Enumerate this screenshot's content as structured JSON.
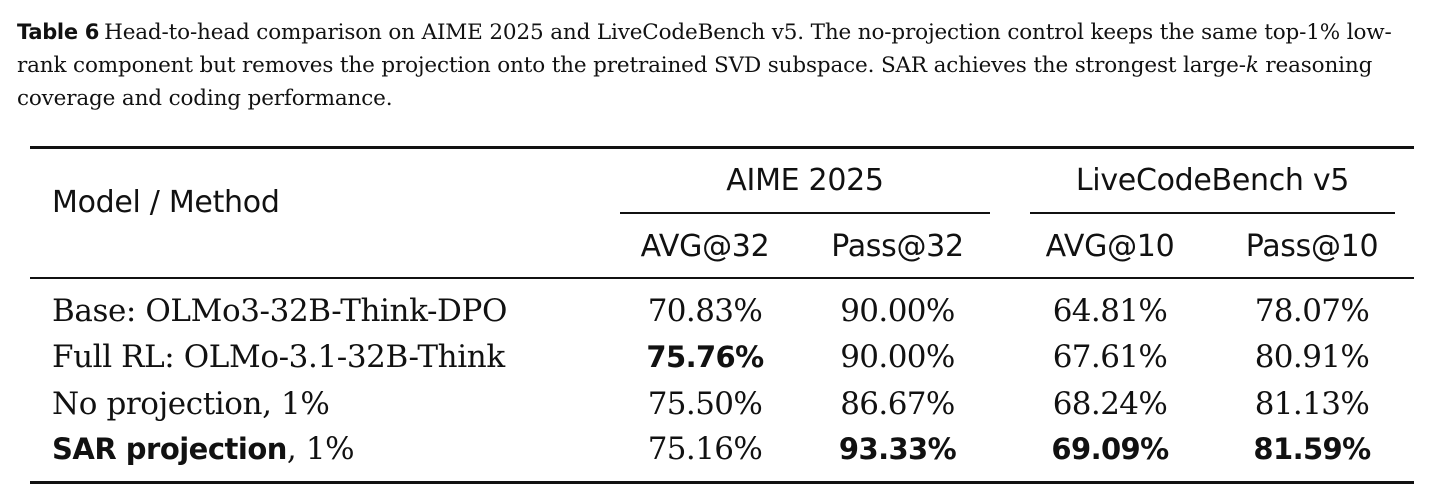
{
  "caption": {
    "label": "Table 6",
    "text_before_var": "Head-to-head comparison on AIME 2025 and LiveCodeBench v5. The no-projection control keeps the same top-1% low-rank component but removes the projection onto the pretrained SVD subspace. SAR achieves the strongest large-",
    "var": "k",
    "text_after_var": " reasoning coverage and coding performance."
  },
  "table": {
    "header": {
      "model_col": "Model / Method",
      "groups": [
        "AIME 2025",
        "LiveCodeBench v5"
      ],
      "subcols": [
        "AVG@32",
        "Pass@32",
        "AVG@10",
        "Pass@10"
      ]
    },
    "rows": [
      {
        "label": "Base:  OLMo3-32B-Think-DPO",
        "values": [
          "70.83%",
          "90.00%",
          "64.81%",
          "78.07%"
        ],
        "bold": [
          false,
          false,
          false,
          false
        ]
      },
      {
        "label": "Full RL: OLMo-3.1-32B-Think",
        "values": [
          "75.76%",
          "90.00%",
          "67.61%",
          "80.91%"
        ],
        "bold": [
          true,
          false,
          false,
          false
        ]
      },
      {
        "label": "No projection, 1%",
        "values": [
          "75.50%",
          "86.67%",
          "68.24%",
          "81.13%"
        ],
        "bold": [
          false,
          false,
          false,
          false
        ]
      },
      {
        "label_bold": "SAR projection",
        "label_rest": ", 1%",
        "values": [
          "75.16%",
          "93.33%",
          "69.09%",
          "81.59%"
        ],
        "bold": [
          false,
          true,
          true,
          true
        ]
      }
    ]
  }
}
